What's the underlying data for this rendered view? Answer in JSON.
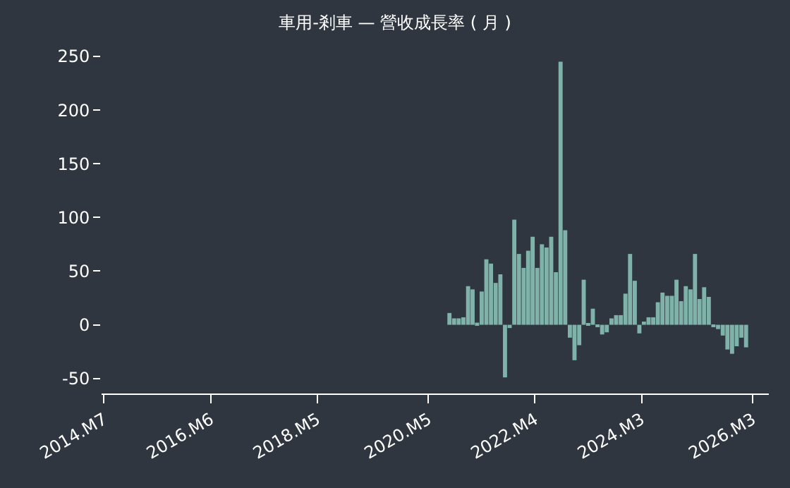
{
  "chart_data": {
    "type": "bar",
    "title": "車用-剎車 — 營收成長率 ( 月 )",
    "x": [
      "2020-09",
      "2020-10",
      "2020-11",
      "2020-12",
      "2021-01",
      "2021-02",
      "2021-03",
      "2021-04",
      "2021-05",
      "2021-06",
      "2021-07",
      "2021-08",
      "2021-09",
      "2021-10",
      "2021-11",
      "2021-12",
      "2022-01",
      "2022-02",
      "2022-03",
      "2022-04",
      "2022-05",
      "2022-06",
      "2022-07",
      "2022-08",
      "2022-09",
      "2022-10",
      "2022-11",
      "2022-12",
      "2023-01",
      "2023-02",
      "2023-03",
      "2023-04",
      "2023-05",
      "2023-06",
      "2023-07",
      "2023-08",
      "2023-09",
      "2023-10",
      "2023-11",
      "2023-12",
      "2024-01",
      "2024-02",
      "2024-03",
      "2024-04",
      "2024-05",
      "2024-06",
      "2024-07",
      "2024-08",
      "2024-09",
      "2024-10",
      "2024-11",
      "2024-12",
      "2025-01",
      "2025-02",
      "2025-03",
      "2025-04",
      "2025-05",
      "2025-06",
      "2025-07",
      "2025-08",
      "2025-09",
      "2025-10",
      "2025-11",
      "2025-12",
      "2026-01"
    ],
    "series": [
      {
        "color": "#7fb3aa",
        "values": [
          11,
          6,
          6,
          7,
          36,
          33,
          2,
          31,
          61,
          57,
          39,
          47,
          -49,
          -3,
          98,
          66,
          53,
          69,
          82,
          53,
          75,
          72,
          82,
          49,
          245,
          88,
          -12,
          -33,
          -19,
          42,
          1,
          15,
          -2,
          -9,
          -7,
          6,
          9,
          9,
          29,
          66,
          41,
          -8,
          3,
          7,
          7,
          21,
          30,
          27,
          27,
          42,
          22,
          36,
          33,
          66,
          24,
          35,
          26,
          -1,
          -4,
          -10,
          -23,
          -27,
          -20,
          -12,
          -21
        ]
      }
    ],
    "xlim": [
      "2014-06-15",
      "2026-06-15"
    ],
    "xticks": [
      {
        "value": "2014-07",
        "label": "2014.M7"
      },
      {
        "value": "2016-06",
        "label": "2016.M6"
      },
      {
        "value": "2018-05",
        "label": "2018.M5"
      },
      {
        "value": "2020-05",
        "label": "2020.M5"
      },
      {
        "value": "2022-04",
        "label": "2022.M4"
      },
      {
        "value": "2024-03",
        "label": "2024.M3"
      },
      {
        "value": "2026-03",
        "label": "2026.M3"
      }
    ],
    "ylim": [
      -64,
      250
    ],
    "yticks": [
      -50,
      0,
      50,
      100,
      150,
      200,
      250
    ],
    "grid": false
  }
}
